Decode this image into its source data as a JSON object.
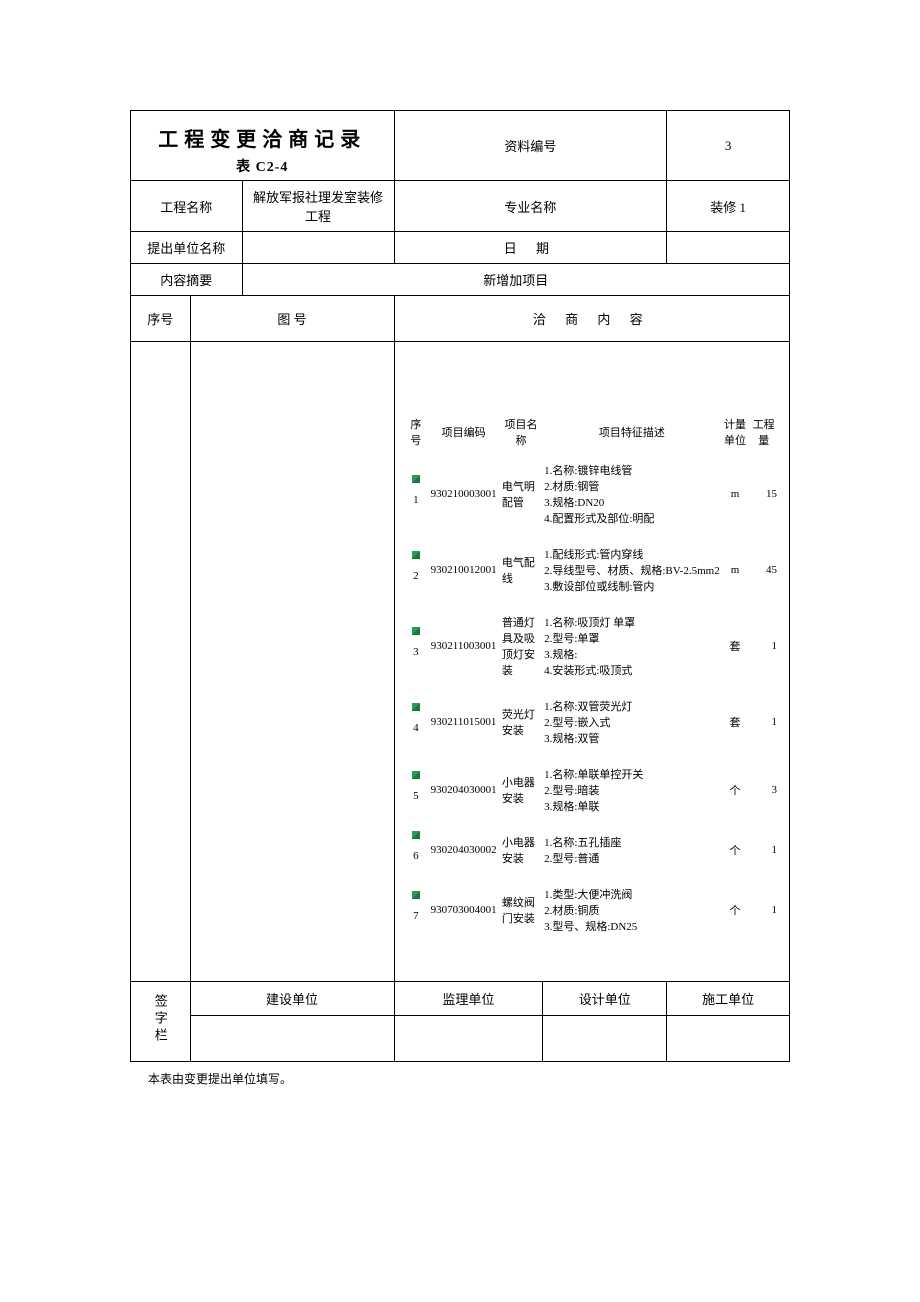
{
  "title": "工程变更洽商记录",
  "subtitle": "表 C2-4",
  "header": {
    "doc_no_label": "资料编号",
    "doc_no_value": "3",
    "project_name_label": "工程名称",
    "project_name_value": "解放军报社理发室装修工程",
    "specialty_label": "专业名称",
    "specialty_value": "装修 1",
    "proposer_label": "提出单位名称",
    "proposer_value": "",
    "date_label": "日 期",
    "date_value": "",
    "summary_label": "内容摘要",
    "summary_value": "新增加项目"
  },
  "columns": {
    "seq": "序号",
    "drawing": "图 号",
    "content": "洽  商  内  容"
  },
  "inner_columns": {
    "seq": "序号",
    "code": "项目编码",
    "name": "项目名称",
    "feature": "项目特征描述",
    "unit": "计量单位",
    "qty": "工程量"
  },
  "items": [
    {
      "seq": "1",
      "code": "930210003001",
      "name": "电气明配管",
      "features": [
        "1.名称:镀锌电线管",
        "2.材质:钢管",
        "3.规格:DN20",
        "4.配置形式及部位:明配"
      ],
      "unit": "m",
      "qty": "15"
    },
    {
      "seq": "2",
      "code": "930210012001",
      "name": "电气配线",
      "features": [
        "1.配线形式:管内穿线",
        "2.导线型号、材质、规格:BV-2.5mm2",
        "3.敷设部位或线制:管内"
      ],
      "unit": "m",
      "qty": "45"
    },
    {
      "seq": "3",
      "code": "930211003001",
      "name": "普通灯具及吸顶灯安装",
      "features": [
        "1.名称:吸顶灯 单罩",
        "2.型号:单罩",
        "3.规格:",
        "4.安装形式:吸顶式"
      ],
      "unit": "套",
      "qty": "1"
    },
    {
      "seq": "4",
      "code": "930211015001",
      "name": "荧光灯安装",
      "features": [
        "1.名称:双管荧光灯",
        "2.型号:嵌入式",
        "3.规格:双管"
      ],
      "unit": "套",
      "qty": "1"
    },
    {
      "seq": "5",
      "code": "930204030001",
      "name": "小电器安装",
      "features": [
        "1.名称:单联单控开关",
        "2.型号:暗装",
        "3.规格:单联"
      ],
      "unit": "个",
      "qty": "3"
    },
    {
      "seq": "6",
      "code": "930204030002",
      "name": "小电器安装",
      "features": [
        "1.名称:五孔插座",
        "2.型号:普通"
      ],
      "unit": "个",
      "qty": "1"
    },
    {
      "seq": "7",
      "code": "930703004001",
      "name": "螺纹阀门安装",
      "features": [
        "1.类型:大便冲洗阀",
        "2.材质:铜质",
        "3.型号、规格:DN25"
      ],
      "unit": "个",
      "qty": "1"
    }
  ],
  "signature": {
    "label": "签字栏",
    "construction": "建设单位",
    "supervision": "监理单位",
    "design": "设计单位",
    "contractor": "施工单位"
  },
  "footer": "本表由变更提出单位填写。",
  "colors": {
    "border": "#000000",
    "background": "#ffffff",
    "marker": "#2a9d5c"
  }
}
